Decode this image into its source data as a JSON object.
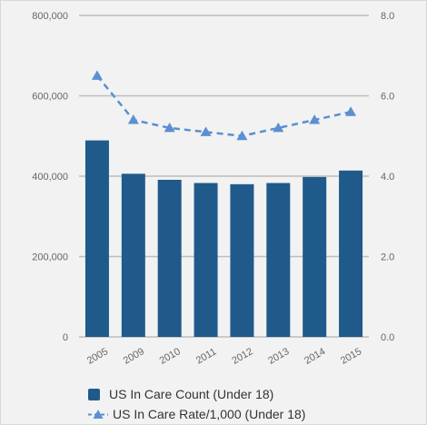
{
  "chart_data": {
    "type": "bar+line",
    "title": "",
    "categories": [
      "2005",
      "2009",
      "2010",
      "2011",
      "2012",
      "2013",
      "2014",
      "2015"
    ],
    "series": [
      {
        "name": "US In Care Count (Under 18)",
        "type": "bar",
        "axis": "left",
        "color": "#1f5a8b",
        "values": [
          489000,
          406000,
          391000,
          383000,
          380000,
          383000,
          398000,
          414000
        ]
      },
      {
        "name": "US In Care Rate/1,000 (Under 18)",
        "type": "line",
        "style": "dashed",
        "marker": "triangle",
        "axis": "right",
        "color": "#5b8fd2",
        "values": [
          6.5,
          5.4,
          5.2,
          5.1,
          5.0,
          5.2,
          5.4,
          5.6
        ]
      }
    ],
    "y_left": {
      "ylim": [
        0,
        800000
      ],
      "ticks": [
        0,
        200000,
        400000,
        600000,
        800000
      ],
      "tick_labels": [
        "0",
        "200,000",
        "400,000",
        "600,000",
        "800,000"
      ]
    },
    "y_right": {
      "ylim": [
        0,
        8
      ],
      "ticks": [
        0,
        2,
        4,
        6,
        8
      ],
      "tick_labels": [
        "0.0",
        "2.0",
        "4.0",
        "6.0",
        "8.0"
      ]
    },
    "grid": true,
    "legend_position": "bottom-left"
  },
  "legend": {
    "bar_label": "US In Care Count (Under 18)",
    "line_label": "US In Care Rate/1,000 (Under 18)"
  },
  "colors": {
    "background": "#f2f2f2",
    "gridline": "#bdbdbd",
    "axis_text": "#666666"
  }
}
